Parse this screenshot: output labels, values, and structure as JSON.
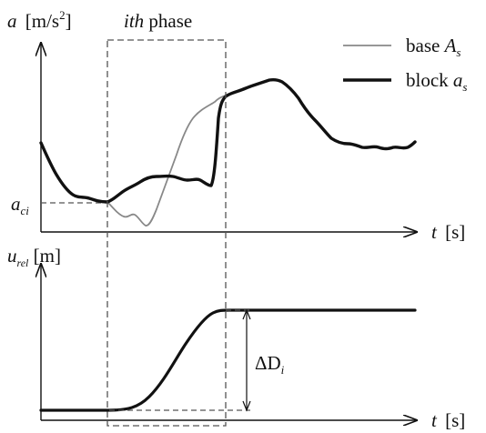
{
  "diagram": {
    "top_panel": {
      "y_axis_symbol": "a",
      "y_axis_unit": "[m/s",
      "y_axis_unit_exp": "2",
      "y_axis_unit_close": "]",
      "x_axis_symbol": "t",
      "x_axis_unit": "[s]",
      "phase_label_italic": "ith",
      "phase_label_rest": " phase",
      "aci_symbol": "a",
      "aci_subscript": "ci",
      "legend": [
        {
          "text": "base ",
          "symbol": "A",
          "subscript": "s",
          "color": "#888888",
          "style": "thin"
        },
        {
          "text": "block ",
          "symbol": "a",
          "subscript": "s",
          "color": "#111111",
          "style": "thick"
        }
      ]
    },
    "bottom_panel": {
      "y_axis_symbol": "u",
      "y_axis_subscript": "rel",
      "y_axis_unit": " [m]",
      "x_axis_symbol": "t",
      "x_axis_unit": "[s]",
      "delta_symbol": "ΔD",
      "delta_subscript": "i"
    },
    "colors": {
      "block": "#111111",
      "base": "#888888",
      "dashed": "#555555"
    }
  }
}
